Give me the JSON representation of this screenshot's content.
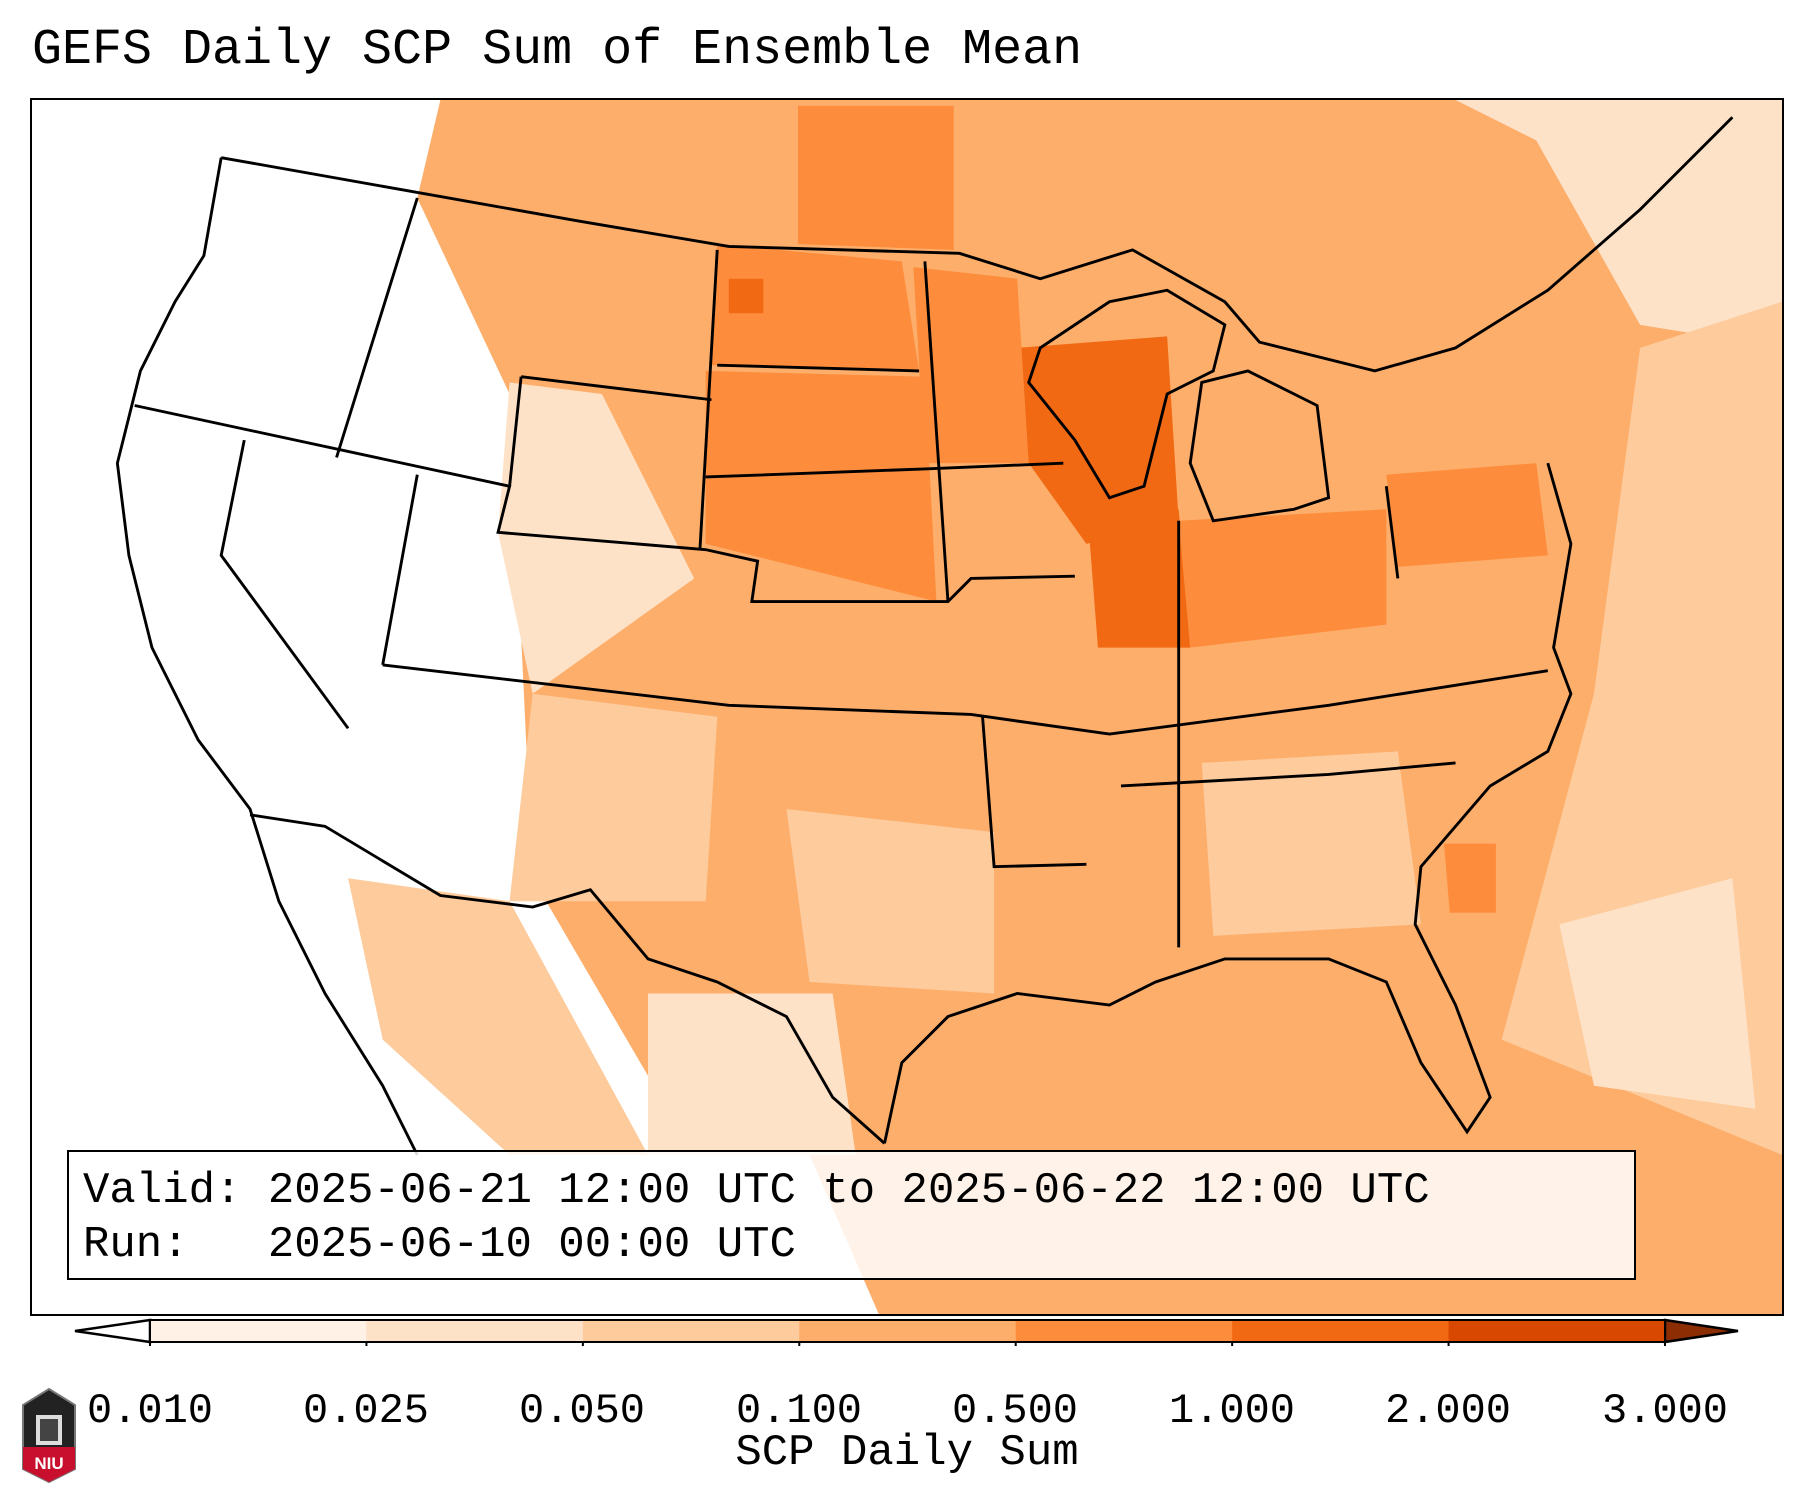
{
  "title": "GEFS Daily SCP Sum of Ensemble Mean",
  "info": {
    "valid_label": "Valid:",
    "valid_value": "2025-06-21 12:00 UTC to 2025-06-22 12:00 UTC",
    "run_label": "Run:  ",
    "run_value": "2025-06-10 00:00 UTC"
  },
  "colorbar": {
    "label": "SCP Daily Sum",
    "ticks": [
      "0.010",
      "0.025",
      "0.050",
      "0.100",
      "0.500",
      "1.000",
      "2.000",
      "3.000"
    ],
    "colors": [
      "#fff1e5",
      "#fee2c8",
      "#fdcb9c",
      "#fdae6b",
      "#fd8d3c",
      "#f16913",
      "#d94801"
    ],
    "under_color": "#ffffff",
    "over_color": "#8c2d04"
  },
  "logo": {
    "text": "NIU"
  }
}
